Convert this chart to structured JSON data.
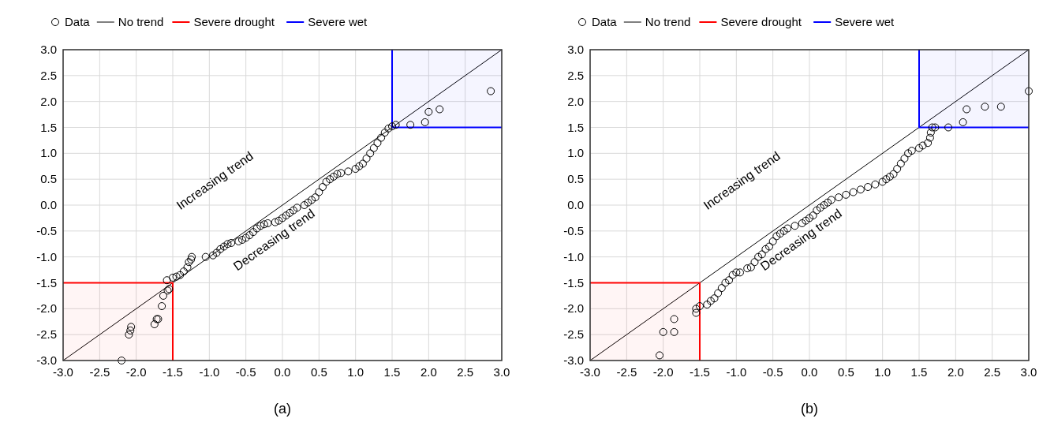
{
  "chart_data": [
    {
      "type": "scatter",
      "title": "(a)",
      "legend": "top",
      "grid": true,
      "xlim": [
        -3,
        3
      ],
      "ylim": [
        -3,
        3
      ],
      "xticks": [
        {
          "value": -3,
          "label": "-3.0"
        },
        {
          "value": -2.5,
          "label": "-2.5"
        },
        {
          "value": -2,
          "label": "-2.0"
        },
        {
          "value": -1.5,
          "label": "-1.5"
        },
        {
          "value": -1,
          "label": "-1.0"
        },
        {
          "value": -0.5,
          "label": "-0.5"
        },
        {
          "value": 0,
          "label": "0.0"
        },
        {
          "value": 0.5,
          "label": "0.5"
        },
        {
          "value": 1,
          "label": "1.0"
        },
        {
          "value": 1.5,
          "label": "1.5"
        },
        {
          "value": 2,
          "label": "2.0"
        },
        {
          "value": 2.5,
          "label": "2.5"
        },
        {
          "value": 3,
          "label": "3.0"
        }
      ],
      "yticks": [
        {
          "value": -3,
          "label": "-3.0"
        },
        {
          "value": -2.5,
          "label": "-2.5"
        },
        {
          "value": -2,
          "label": "-2.0"
        },
        {
          "value": -1.5,
          "label": "-1.5"
        },
        {
          "value": -1,
          "label": "-1.0"
        },
        {
          "value": -0.5,
          "label": "-0.5"
        },
        {
          "value": 0,
          "label": "0.0"
        },
        {
          "value": 0.5,
          "label": "0.5"
        },
        {
          "value": 1,
          "label": "1.0"
        },
        {
          "value": 1.5,
          "label": "1.5"
        },
        {
          "value": 2,
          "label": "2.0"
        },
        {
          "value": 2.5,
          "label": "2.5"
        },
        {
          "value": 3,
          "label": "3.0"
        }
      ],
      "annotations": [
        "Increasing trend",
        "Decreasing trend"
      ],
      "series": [
        {
          "name": "Data",
          "type": "scatter",
          "marker": "circle",
          "color": "#000000",
          "x": [
            -2.2,
            -2.1,
            -2.08,
            -2.07,
            -1.75,
            -1.72,
            -1.7,
            -1.65,
            -1.63,
            -1.57,
            -1.55,
            -1.58,
            -1.5,
            -1.45,
            -1.4,
            -1.35,
            -1.3,
            -1.28,
            -1.25,
            -1.24,
            -1.05,
            -0.95,
            -0.9,
            -0.85,
            -0.8,
            -0.75,
            -0.7,
            -0.6,
            -0.55,
            -0.5,
            -0.45,
            -0.4,
            -0.35,
            -0.3,
            -0.25,
            -0.2,
            -0.1,
            -0.05,
            0,
            0.05,
            0.1,
            0.15,
            0.2,
            0.3,
            0.35,
            0.4,
            0.45,
            0.5,
            0.55,
            0.6,
            0.65,
            0.7,
            0.75,
            0.8,
            0.9,
            1,
            1.05,
            1.1,
            1.15,
            1.2,
            1.25,
            1.3,
            1.35,
            1.4,
            1.45,
            1.5,
            1.55,
            1.75,
            1.95,
            2,
            2.15,
            2.85
          ],
          "values": [
            -3,
            -2.5,
            -2.42,
            -2.35,
            -2.3,
            -2.2,
            -2.2,
            -1.95,
            -1.75,
            -1.65,
            -1.62,
            -1.45,
            -1.4,
            -1.38,
            -1.35,
            -1.28,
            -1.2,
            -1.1,
            -1.05,
            -1,
            -1,
            -0.97,
            -0.92,
            -0.85,
            -0.8,
            -0.75,
            -0.73,
            -0.7,
            -0.67,
            -0.63,
            -0.58,
            -0.52,
            -0.45,
            -0.4,
            -0.37,
            -0.35,
            -0.33,
            -0.3,
            -0.25,
            -0.2,
            -0.15,
            -0.1,
            -0.05,
            0,
            0.05,
            0.1,
            0.15,
            0.25,
            0.35,
            0.45,
            0.5,
            0.55,
            0.6,
            0.62,
            0.65,
            0.7,
            0.75,
            0.8,
            0.9,
            1,
            1.1,
            1.2,
            1.3,
            1.4,
            1.48,
            1.52,
            1.55,
            1.55,
            1.6,
            1.8,
            1.85,
            2.2
          ]
        },
        {
          "name": "No trend",
          "type": "line",
          "color": "#000000",
          "x": [
            -3,
            3
          ],
          "values": [
            -3,
            3
          ]
        },
        {
          "name": "Severe drought",
          "type": "line",
          "color": "#ff0000",
          "x": [
            -3,
            -1.5,
            -1.5
          ],
          "values": [
            -1.5,
            -1.5,
            -3
          ]
        },
        {
          "name": "Severe wet",
          "type": "line",
          "color": "#0000ff",
          "x": [
            1.5,
            1.5,
            3
          ],
          "values": [
            3,
            1.5,
            1.5
          ]
        }
      ]
    },
    {
      "type": "scatter",
      "title": "(b)",
      "legend": "top",
      "grid": true,
      "xlim": [
        -3,
        3
      ],
      "ylim": [
        -3,
        3
      ],
      "xticks": [
        {
          "value": -3,
          "label": "-3.0"
        },
        {
          "value": -2.5,
          "label": "-2.5"
        },
        {
          "value": -2,
          "label": "-2.0"
        },
        {
          "value": -1.5,
          "label": "-1.5"
        },
        {
          "value": -1,
          "label": "-1.0"
        },
        {
          "value": -0.5,
          "label": "-0.5"
        },
        {
          "value": 0,
          "label": "0.0"
        },
        {
          "value": 0.5,
          "label": "0.5"
        },
        {
          "value": 1,
          "label": "1.0"
        },
        {
          "value": 1.5,
          "label": "1.5"
        },
        {
          "value": 2,
          "label": "2.0"
        },
        {
          "value": 2.5,
          "label": "2.5"
        },
        {
          "value": 3,
          "label": "3.0"
        }
      ],
      "yticks": [
        {
          "value": -3,
          "label": "-3.0"
        },
        {
          "value": -2.5,
          "label": "-2.5"
        },
        {
          "value": -2,
          "label": "-2.0"
        },
        {
          "value": -1.5,
          "label": "-1.5"
        },
        {
          "value": -1,
          "label": "-1.0"
        },
        {
          "value": -0.5,
          "label": "-0.5"
        },
        {
          "value": 0,
          "label": "0.0"
        },
        {
          "value": 0.5,
          "label": "0.5"
        },
        {
          "value": 1,
          "label": "1.0"
        },
        {
          "value": 1.5,
          "label": "1.5"
        },
        {
          "value": 2,
          "label": "2.0"
        },
        {
          "value": 2.5,
          "label": "2.5"
        },
        {
          "value": 3,
          "label": "3.0"
        }
      ],
      "annotations": [
        "Increasing trend",
        "Decreasing trend"
      ],
      "series": [
        {
          "name": "Data",
          "type": "scatter",
          "marker": "circle",
          "color": "#000000",
          "x": [
            -2.05,
            -2,
            -1.85,
            -1.85,
            -1.55,
            -1.55,
            -1.5,
            -1.4,
            -1.35,
            -1.3,
            -1.25,
            -1.2,
            -1.15,
            -1.1,
            -1.05,
            -1,
            -0.95,
            -0.85,
            -0.8,
            -0.75,
            -0.7,
            -0.65,
            -0.6,
            -0.55,
            -0.5,
            -0.45,
            -0.4,
            -0.35,
            -0.3,
            -0.2,
            -0.1,
            -0.05,
            0,
            0.05,
            0.1,
            0.15,
            0.2,
            0.25,
            0.3,
            0.4,
            0.5,
            0.6,
            0.7,
            0.8,
            0.9,
            1,
            1.05,
            1.1,
            1.15,
            1.2,
            1.25,
            1.3,
            1.35,
            1.4,
            1.5,
            1.55,
            1.62,
            1.65,
            1.66,
            1.68,
            1.72,
            1.9,
            2.1,
            2.15,
            2.4,
            2.62,
            3
          ],
          "values": [
            -2.9,
            -2.45,
            -2.45,
            -2.2,
            -2.08,
            -2,
            -1.95,
            -1.92,
            -1.85,
            -1.8,
            -1.7,
            -1.6,
            -1.5,
            -1.45,
            -1.35,
            -1.3,
            -1.3,
            -1.22,
            -1.2,
            -1.1,
            -1,
            -0.95,
            -0.85,
            -0.8,
            -0.7,
            -0.6,
            -0.55,
            -0.5,
            -0.45,
            -0.4,
            -0.35,
            -0.3,
            -0.25,
            -0.2,
            -0.1,
            -0.05,
            0,
            0.05,
            0.1,
            0.15,
            0.2,
            0.25,
            0.3,
            0.35,
            0.4,
            0.45,
            0.5,
            0.55,
            0.6,
            0.7,
            0.8,
            0.9,
            1,
            1.05,
            1.1,
            1.15,
            1.2,
            1.3,
            1.4,
            1.5,
            1.5,
            1.5,
            1.6,
            1.85,
            1.9,
            1.9,
            2.2
          ]
        },
        {
          "name": "No trend",
          "type": "line",
          "color": "#000000",
          "x": [
            -3,
            3
          ],
          "values": [
            -3,
            3
          ]
        },
        {
          "name": "Severe drought",
          "type": "line",
          "color": "#ff0000",
          "x": [
            -3,
            -1.5,
            -1.5
          ],
          "values": [
            -1.5,
            -1.5,
            -3
          ]
        },
        {
          "name": "Severe wet",
          "type": "line",
          "color": "#0000ff",
          "x": [
            1.5,
            1.5,
            3
          ],
          "values": [
            3,
            1.5,
            1.5
          ]
        }
      ]
    }
  ]
}
